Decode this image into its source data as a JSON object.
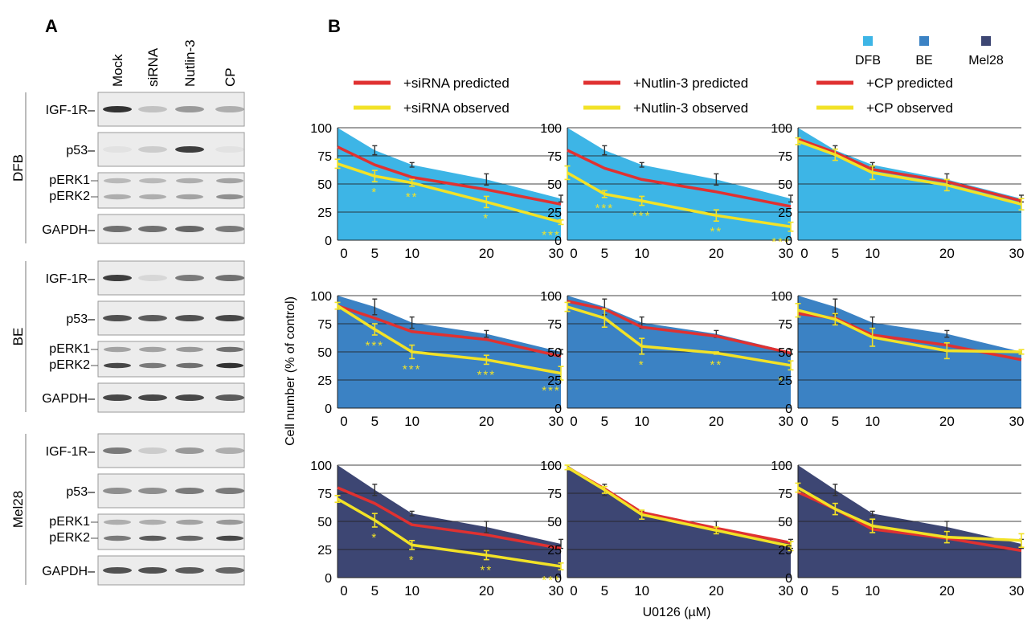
{
  "panel_a": {
    "label": "A",
    "lanes": [
      "Mock",
      "siRNA",
      "Nutlin-3",
      "CP"
    ],
    "groups": [
      {
        "name": "DFB",
        "blots": [
          "IGF-1R",
          "p53",
          "pERK1|pERK2",
          "GAPDH"
        ]
      },
      {
        "name": "BE",
        "blots": [
          "IGF-1R",
          "p53",
          "pERK1|pERK2",
          "GAPDH"
        ]
      },
      {
        "name": "Mel28",
        "blots": [
          "IGF-1R",
          "p53",
          "pERK1|pERK2",
          "GAPDH"
        ]
      }
    ],
    "band_intensity": {
      "DFB": {
        "IGF-1R": [
          0.9,
          0.2,
          0.4,
          0.3
        ],
        "p53": [
          0.05,
          0.15,
          0.85,
          0.05
        ],
        "pERK1": [
          0.25,
          0.25,
          0.3,
          0.35
        ],
        "pERK2": [
          0.3,
          0.3,
          0.35,
          0.45
        ],
        "GAPDH": [
          0.6,
          0.6,
          0.65,
          0.55
        ]
      },
      "BE": {
        "IGF-1R": [
          0.85,
          0.1,
          0.55,
          0.6
        ],
        "p53": [
          0.75,
          0.7,
          0.75,
          0.8
        ],
        "pERK1": [
          0.35,
          0.35,
          0.4,
          0.6
        ],
        "pERK2": [
          0.8,
          0.55,
          0.6,
          0.9
        ],
        "GAPDH": [
          0.8,
          0.8,
          0.8,
          0.7
        ]
      },
      "Mel28": {
        "IGF-1R": [
          0.55,
          0.15,
          0.4,
          0.3
        ],
        "p53": [
          0.45,
          0.45,
          0.55,
          0.55
        ],
        "pERK1": [
          0.3,
          0.3,
          0.35,
          0.4
        ],
        "pERK2": [
          0.55,
          0.7,
          0.65,
          0.8
        ],
        "GAPDH": [
          0.75,
          0.75,
          0.7,
          0.65
        ]
      }
    }
  },
  "panel_b": {
    "label": "B",
    "area_legend": [
      {
        "name": "DFB",
        "color": "#3db5e6"
      },
      {
        "name": "BE",
        "color": "#3b82c4"
      },
      {
        "name": "Mel28",
        "color": "#3d4673"
      }
    ],
    "line_legends": [
      [
        "+siRNA predicted",
        "+siRNA observed"
      ],
      [
        "+Nutlin-3 predicted",
        "+Nutlin-3 observed"
      ],
      [
        "+CP predicted",
        "+CP observed"
      ]
    ],
    "predicted_color": "#e03131",
    "observed_color": "#f2e227",
    "ylabel": "Cell number (% of control)",
    "xlabel": "U0126 (µM)"
  },
  "chart_data": {
    "type": "area",
    "x": [
      0,
      5,
      10,
      20,
      30
    ],
    "ylim": [
      0,
      100
    ],
    "xlim": [
      0,
      30
    ],
    "yticks": [
      0,
      25,
      50,
      75,
      100
    ],
    "grid": true,
    "panels": [
      {
        "row": "DFB",
        "col": "siRNA",
        "area": [
          100,
          80,
          67,
          54,
          37
        ],
        "area_err": [
          0,
          4,
          2,
          5,
          3
        ],
        "predicted": [
          83,
          67,
          56,
          45,
          32
        ],
        "observed": [
          68,
          57,
          51,
          34,
          16
        ],
        "observed_err": [
          4,
          5,
          3,
          5,
          2
        ],
        "stars": [
          "",
          "*",
          "**",
          "*",
          "***"
        ]
      },
      {
        "row": "DFB",
        "col": "Nutlin-3",
        "area": [
          100,
          80,
          67,
          54,
          37
        ],
        "area_err": [
          0,
          4,
          2,
          5,
          3
        ],
        "predicted": [
          80,
          64,
          54,
          43,
          30
        ],
        "observed": [
          60,
          41,
          35,
          22,
          12
        ],
        "observed_err": [
          6,
          3,
          4,
          5,
          4
        ],
        "stars": [
          "",
          "***",
          "***",
          "**",
          "***"
        ]
      },
      {
        "row": "DFB",
        "col": "CP",
        "area": [
          100,
          80,
          67,
          54,
          37
        ],
        "area_err": [
          0,
          4,
          2,
          5,
          3
        ],
        "predicted": [
          90,
          78,
          63,
          52,
          35
        ],
        "observed": [
          88,
          76,
          60,
          49,
          32
        ],
        "observed_err": [
          3,
          5,
          6,
          5,
          5
        ],
        "stars": [
          "",
          "",
          "",
          "",
          ""
        ]
      },
      {
        "row": "BE",
        "col": "siRNA",
        "area": [
          100,
          90,
          76,
          66,
          50
        ],
        "area_err": [
          0,
          7,
          5,
          3,
          2
        ],
        "predicted": [
          91,
          80,
          68,
          61,
          46
        ],
        "observed": [
          91,
          70,
          50,
          43,
          31
        ],
        "observed_err": [
          3,
          5,
          6,
          4,
          6
        ],
        "stars": [
          "",
          "***",
          "***",
          "***",
          "***"
        ]
      },
      {
        "row": "BE",
        "col": "Nutlin-3",
        "area": [
          100,
          90,
          76,
          66,
          50
        ],
        "area_err": [
          0,
          7,
          5,
          3,
          2
        ],
        "predicted": [
          95,
          88,
          72,
          64,
          49
        ],
        "observed": [
          90,
          80,
          55,
          49,
          38
        ],
        "observed_err": [
          4,
          8,
          7,
          1,
          4
        ],
        "stars": [
          "",
          "",
          "*",
          "**",
          "*"
        ]
      },
      {
        "row": "BE",
        "col": "CP",
        "area": [
          100,
          90,
          76,
          66,
          50
        ],
        "area_err": [
          0,
          7,
          5,
          3,
          2
        ],
        "predicted": [
          84,
          80,
          65,
          56,
          43
        ],
        "observed": [
          87,
          79,
          63,
          51,
          50
        ],
        "observed_err": [
          6,
          5,
          8,
          7,
          2
        ],
        "stars": [
          "",
          "",
          "",
          "",
          ""
        ]
      },
      {
        "row": "Mel28",
        "col": "siRNA",
        "area": [
          100,
          78,
          57,
          45,
          30
        ],
        "area_err": [
          0,
          5,
          2,
          5,
          4
        ],
        "predicted": [
          80,
          66,
          47,
          38,
          26
        ],
        "observed": [
          70,
          51,
          29,
          20,
          10
        ],
        "observed_err": [
          3,
          6,
          4,
          4,
          3
        ],
        "stars": [
          "",
          "*",
          "*",
          "**",
          "***"
        ]
      },
      {
        "row": "Mel28",
        "col": "Nutlin-3",
        "area": [
          100,
          78,
          57,
          45,
          30
        ],
        "area_err": [
          0,
          5,
          2,
          5,
          4
        ],
        "predicted": [
          98,
          79,
          58,
          44,
          31
        ],
        "observed": [
          98,
          78,
          56,
          42,
          28
        ],
        "observed_err": [
          2,
          3,
          4,
          3,
          4
        ],
        "stars": [
          "",
          "",
          "",
          "",
          ""
        ]
      },
      {
        "row": "Mel28",
        "col": "CP",
        "area": [
          100,
          78,
          57,
          45,
          30
        ],
        "area_err": [
          0,
          5,
          2,
          5,
          4
        ],
        "predicted": [
          76,
          61,
          43,
          35,
          24
        ],
        "observed": [
          80,
          61,
          46,
          36,
          33
        ],
        "observed_err": [
          4,
          5,
          6,
          5,
          6
        ],
        "stars": [
          "",
          "",
          "",
          "",
          ""
        ]
      }
    ]
  }
}
